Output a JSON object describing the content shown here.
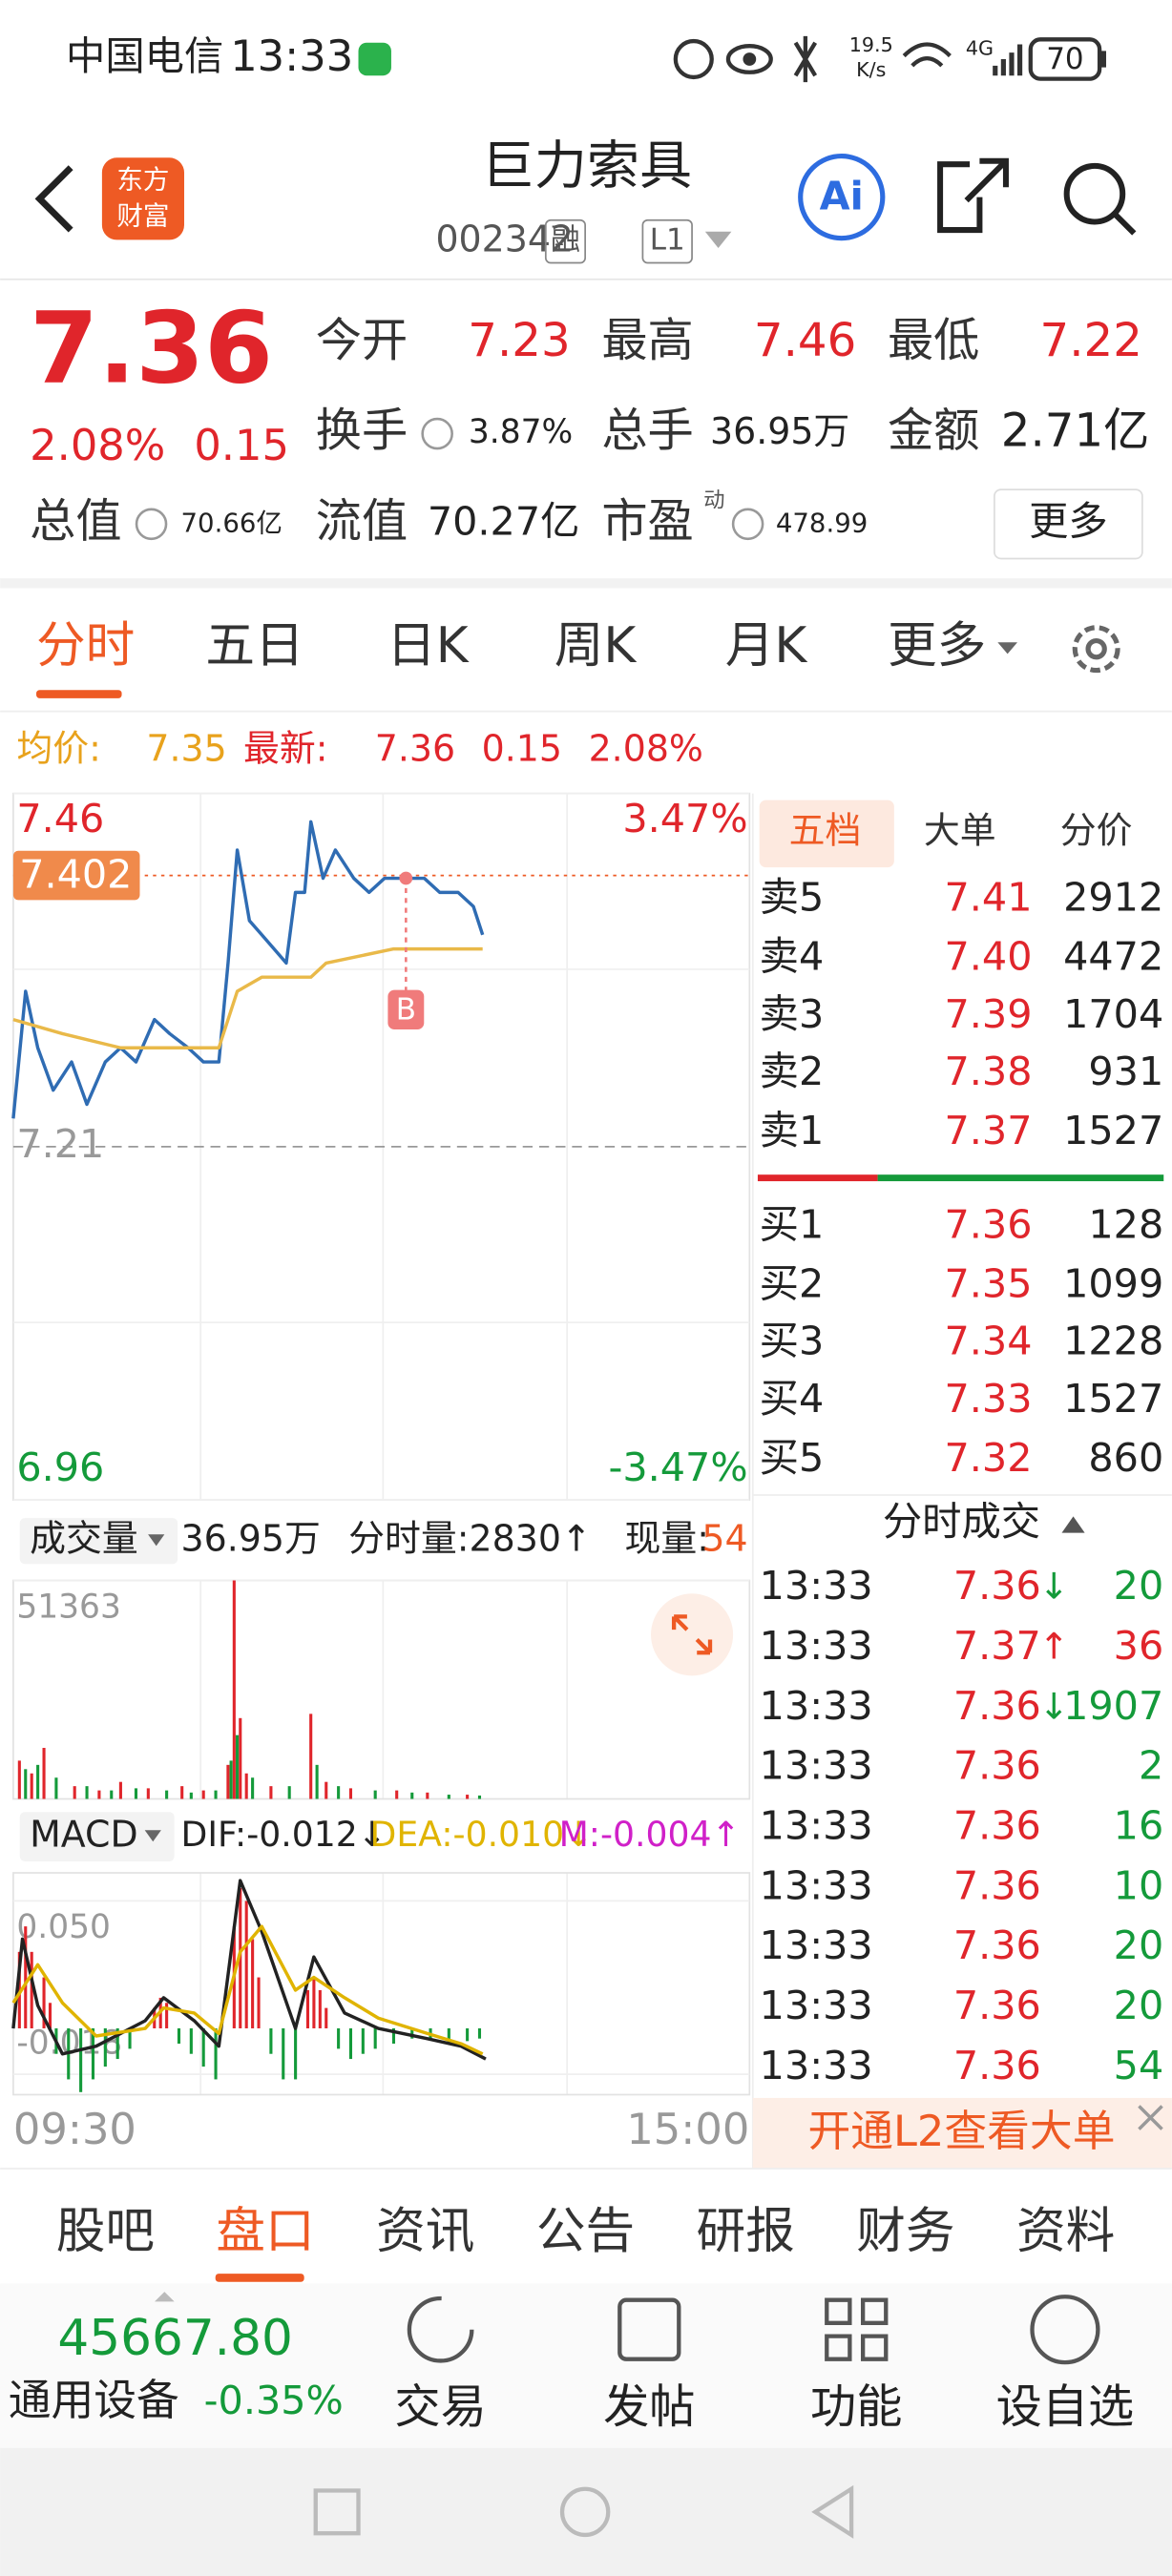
{
  "status_bar": {
    "carrier": "中国电信",
    "time": "13:33",
    "net_speed": "19.5",
    "net_speed_unit": "K/s",
    "network": "4G",
    "battery": "70"
  },
  "header": {
    "logo": [
      "东方",
      "财富"
    ],
    "title": "巨力索具",
    "code": "002342",
    "badges": [
      "融",
      "L1"
    ],
    "ai_button": "Ai"
  },
  "quote": {
    "price": "7.36",
    "change_pct": "2.08%",
    "change": "0.15",
    "stats": [
      {
        "label": "今开",
        "value": "7.23"
      },
      {
        "label": "最高",
        "value": "7.46"
      },
      {
        "label": "最低",
        "value": "7.22"
      },
      {
        "label": "换手",
        "value": "3.87%"
      },
      {
        "label": "总手",
        "value": "36.95万"
      },
      {
        "label": "金额",
        "value": "2.71亿"
      },
      {
        "label": "总值",
        "value": "70.66亿"
      },
      {
        "label": "流值",
        "value": "70.27亿"
      },
      {
        "label": "市盈",
        "sup": "动",
        "value": "478.99"
      }
    ],
    "more": "更多"
  },
  "chart_tabs": [
    "分时",
    "五日",
    "日K",
    "周K",
    "月K",
    "更多"
  ],
  "summary": {
    "avg_label": "均价:",
    "avg": "7.35",
    "last_label": "最新:",
    "last": "7.36",
    "change": "0.15",
    "change_pct": "2.08%"
  },
  "chart_data": [
    {
      "type": "line",
      "xlim": [
        0,
        240
      ],
      "ylim": [
        6.96,
        7.46
      ],
      "yticks": [
        7.46,
        7.21,
        6.96
      ],
      "y2lim": [
        -3.47,
        3.47
      ],
      "y2ticks": [
        {
          "value": 3.47,
          "label": "3.47%"
        },
        {
          "value": -3.47,
          "label": "-3.47%"
        }
      ],
      "ref_price": 7.402,
      "markers": [
        {
          "label": "B",
          "x": 128,
          "y": 7.4
        }
      ],
      "series": [
        {
          "color": "#2f6cb3",
          "x": [
            0,
            4,
            8,
            13,
            19,
            24,
            30,
            35,
            40,
            46,
            51,
            57,
            62,
            67,
            70,
            73,
            77,
            81,
            85,
            89,
            92,
            95,
            97,
            101,
            105,
            111,
            116,
            121,
            128,
            134,
            139,
            145,
            150,
            153
          ],
          "values": [
            7.23,
            7.32,
            7.28,
            7.25,
            7.27,
            7.24,
            7.27,
            7.28,
            7.27,
            7.3,
            7.29,
            7.28,
            7.27,
            7.27,
            7.34,
            7.42,
            7.37,
            7.36,
            7.35,
            7.34,
            7.39,
            7.39,
            7.44,
            7.4,
            7.42,
            7.4,
            7.39,
            7.4,
            7.4,
            7.4,
            7.39,
            7.39,
            7.38,
            7.36
          ]
        },
        {
          "color": "#e9b949",
          "x": [
            0,
            16,
            35,
            67,
            73,
            81,
            97,
            102,
            124,
            153
          ],
          "values": [
            7.3,
            7.29,
            7.28,
            7.28,
            7.32,
            7.33,
            7.33,
            7.34,
            7.35,
            7.35
          ]
        }
      ]
    },
    {
      "type": "bar",
      "label": "成交量",
      "total": "36.95万",
      "minute_volume": "分时量:2830↑",
      "current_label": "现量:",
      "current": "54",
      "xlim": [
        0,
        240
      ],
      "ylim": [
        0,
        51363
      ],
      "yticks": [
        51363
      ],
      "series": [
        {
          "color": "#e0252b",
          "x": [
            2,
            6,
            10,
            20,
            28,
            35,
            44,
            55,
            62,
            70,
            72,
            74,
            76,
            84,
            97,
            102,
            110,
            125,
            135,
            148
          ],
          "values": [
            9000,
            6000,
            12000,
            3000,
            2000,
            4000,
            2500,
            3000,
            2000,
            8000,
            51363,
            19000,
            6000,
            3000,
            20000,
            4000,
            2500,
            2000,
            1500,
            1000
          ]
        },
        {
          "color": "#149a3a",
          "x": [
            4,
            8,
            14,
            24,
            32,
            40,
            50,
            58,
            66,
            71,
            73,
            78,
            90,
            99,
            106,
            118,
            130,
            142,
            152
          ],
          "values": [
            7000,
            8000,
            5000,
            3000,
            2000,
            2500,
            2000,
            1500,
            2000,
            9000,
            15000,
            5000,
            3000,
            8000,
            3000,
            2000,
            1500,
            1000,
            800
          ]
        }
      ]
    },
    {
      "type": "line",
      "label": "MACD",
      "indicators": [
        {
          "text": "DIF:-0.012↓",
          "color": "#222222"
        },
        {
          "text": "DEA:-0.010↓",
          "color": "#e0b400"
        },
        {
          "text": "M:-0.004↑",
          "color": "#d020c8"
        }
      ],
      "xlim": [
        0,
        240
      ],
      "xticks": [
        {
          "value": 0,
          "label": "09:30"
        },
        {
          "value": 240,
          "label": "15:00"
        }
      ],
      "ylim": [
        -0.026,
        0.061
      ],
      "yticks": [
        {
          "value": 0.05,
          "label": "0.050"
        },
        -0.018
      ],
      "series": [
        {
          "color": "#222222",
          "x": [
            0,
            3,
            8,
            16,
            27,
            43,
            49,
            59,
            67,
            74,
            81,
            92,
            98,
            108,
            119,
            135,
            146,
            154
          ],
          "values": [
            0.0,
            0.035,
            0.009,
            -0.01,
            -0.007,
            0.003,
            0.012,
            0.003,
            -0.007,
            0.058,
            0.038,
            0.0,
            0.028,
            0.006,
            0.0,
            -0.004,
            -0.007,
            -0.012
          ]
        },
        {
          "color": "#e0b400",
          "x": [
            0,
            8,
            16,
            27,
            43,
            49,
            59,
            67,
            74,
            81,
            92,
            98,
            108,
            119,
            135,
            146,
            153
          ],
          "values": [
            0.01,
            0.025,
            0.01,
            -0.003,
            0.0,
            0.008,
            0.006,
            -0.002,
            0.03,
            0.04,
            0.015,
            0.02,
            0.012,
            0.004,
            -0.002,
            -0.006,
            -0.01
          ]
        },
        {
          "type": "bar",
          "color": "#e0252b",
          "x": [
            2,
            4,
            6,
            10,
            12,
            46,
            48,
            50,
            72,
            74,
            76,
            78,
            80,
            96,
            98,
            100,
            102
          ],
          "values": [
            0.03,
            0.04,
            0.03,
            0.02,
            0.01,
            0.008,
            0.012,
            0.01,
            0.04,
            0.055,
            0.05,
            0.035,
            0.02,
            0.015,
            0.02,
            0.015,
            0.008
          ]
        },
        {
          "type": "bar",
          "color": "#149a3a",
          "x": [
            14,
            18,
            22,
            26,
            30,
            34,
            38,
            54,
            58,
            62,
            66,
            84,
            88,
            92,
            106,
            110,
            114,
            118,
            124,
            130,
            136,
            142,
            148,
            152
          ],
          "values": [
            -0.01,
            -0.02,
            -0.025,
            -0.02,
            -0.015,
            -0.012,
            -0.008,
            -0.006,
            -0.01,
            -0.015,
            -0.02,
            -0.01,
            -0.02,
            -0.02,
            -0.008,
            -0.012,
            -0.01,
            -0.008,
            -0.006,
            -0.004,
            -0.004,
            -0.006,
            -0.005,
            -0.004
          ]
        }
      ]
    }
  ],
  "order_book": {
    "tabs": [
      "五档",
      "大单",
      "分价"
    ],
    "asks": [
      {
        "label": "卖5",
        "price": "7.41",
        "volume": 2912
      },
      {
        "label": "卖4",
        "price": "7.40",
        "volume": 4472
      },
      {
        "label": "卖3",
        "price": "7.39",
        "volume": 1704
      },
      {
        "label": "卖2",
        "price": "7.38",
        "volume": 931
      },
      {
        "label": "卖1",
        "price": "7.37",
        "volume": 1527
      }
    ],
    "bids": [
      {
        "label": "买1",
        "price": "7.36",
        "volume": 128
      },
      {
        "label": "买2",
        "price": "7.35",
        "volume": 1099
      },
      {
        "label": "买3",
        "price": "7.34",
        "volume": 1228
      },
      {
        "label": "买4",
        "price": "7.33",
        "volume": 1527
      },
      {
        "label": "买5",
        "price": "7.32",
        "volume": 860
      }
    ]
  },
  "trades": {
    "title": "分时成交",
    "rows": [
      {
        "time": "13:33",
        "price": "7.36",
        "arrow": "↓",
        "volume": "20",
        "color": "#149a3a"
      },
      {
        "time": "13:33",
        "price": "7.37",
        "arrow": "↑",
        "volume": "36",
        "color": "#e0252b"
      },
      {
        "time": "13:33",
        "price": "7.36",
        "arrow": "↓",
        "volume": "1907",
        "color": "#149a3a"
      },
      {
        "time": "13:33",
        "price": "7.36",
        "volume": "2",
        "color": "#149a3a"
      },
      {
        "time": "13:33",
        "price": "7.36",
        "volume": "16",
        "color": "#149a3a"
      },
      {
        "time": "13:33",
        "price": "7.36",
        "volume": "10",
        "color": "#149a3a"
      },
      {
        "time": "13:33",
        "price": "7.36",
        "volume": "20",
        "color": "#149a3a"
      },
      {
        "time": "13:33",
        "price": "7.36",
        "volume": "20",
        "color": "#149a3a"
      },
      {
        "time": "13:33",
        "price": "7.36",
        "volume": "54",
        "color": "#149a3a"
      }
    ],
    "banner": "开通L2查看大单"
  },
  "bottom_tabs": [
    "股吧",
    "盘口",
    "资讯",
    "公告",
    "研报",
    "财务",
    "资料"
  ],
  "footer": {
    "index_value": "45667.80",
    "sector": "通用设备",
    "sector_change": "-0.35%",
    "actions": [
      "交易",
      "发帖",
      "功能",
      "设自选"
    ]
  }
}
